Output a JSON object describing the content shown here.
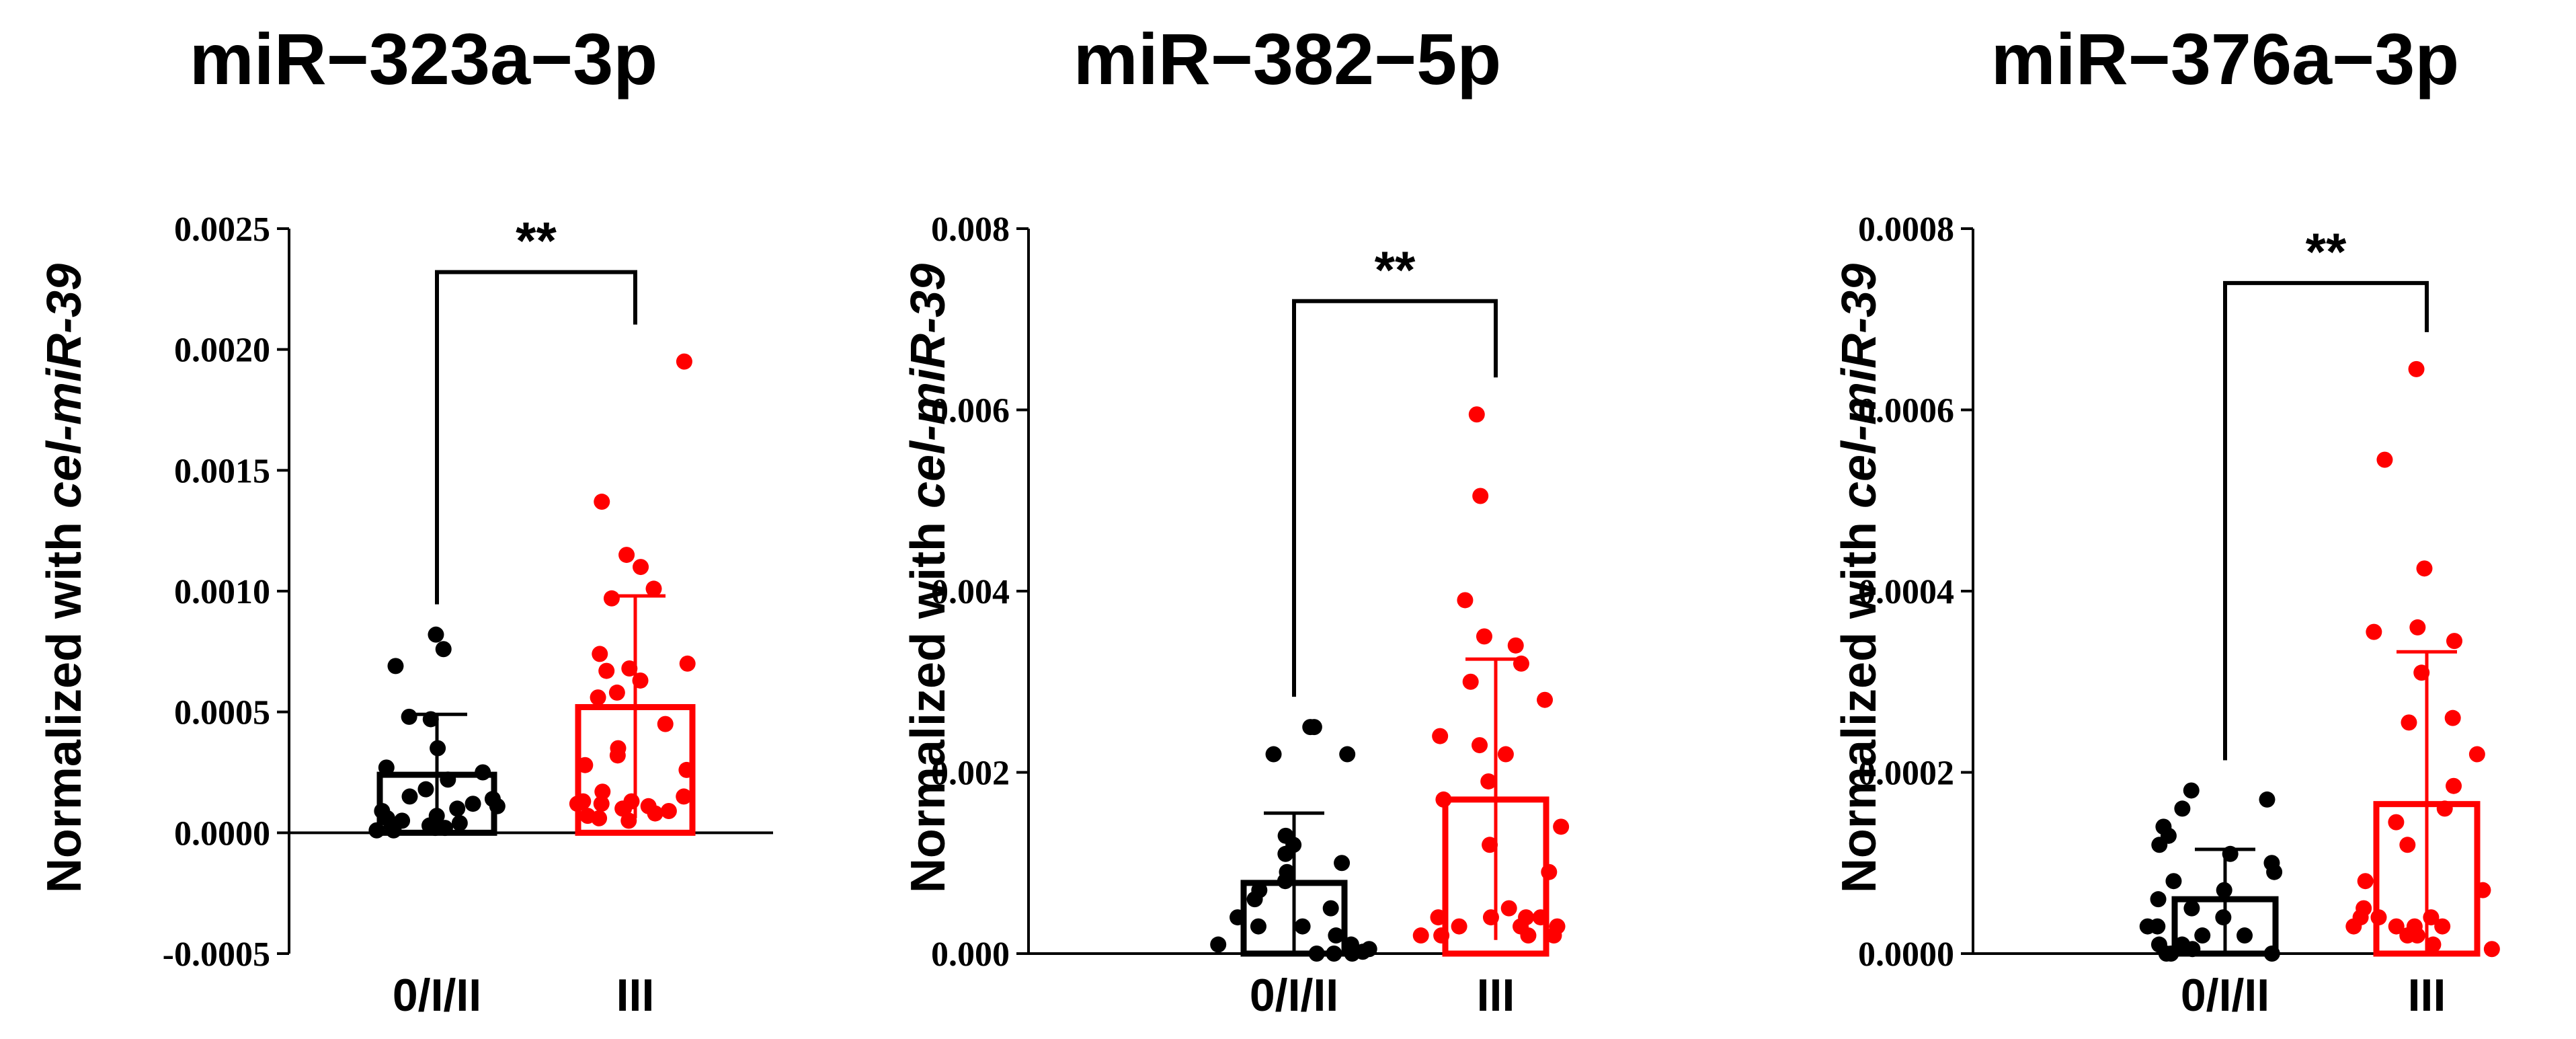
{
  "chart_data": [
    {
      "type": "bar",
      "title": "miR−323a−3p",
      "ylabel_prefix": "Normalized with ",
      "ylabel_italic": "cel-miR-39",
      "categories": [
        "0/I/II",
        "III"
      ],
      "ylim": [
        -0.0005,
        0.0025
      ],
      "yticks": [
        -0.0005,
        0.0,
        0.0005,
        0.001,
        0.0015,
        0.002,
        0.0025
      ],
      "ytick_labels": [
        "-0.0005",
        "0.0000",
        "0.0005",
        "0.0010",
        "0.0015",
        "0.0020",
        "0.0025"
      ],
      "zero_line": true,
      "significance": "**",
      "series": [
        {
          "category": "0/I/II",
          "color": "#000000",
          "mean": 0.00024,
          "sd_upper": 0.00049,
          "sd_lower": 0.0,
          "points": [
            0.00082,
            0.00076,
            0.00069,
            0.00048,
            0.00047,
            0.00035,
            0.00027,
            0.00025,
            0.00022,
            0.00018,
            0.00015,
            0.00012,
            0.0001,
            9e-05,
            7e-05,
            5e-05,
            4e-05,
            3e-05,
            2e-05,
            2e-05,
            1e-05,
            1e-05,
            0.00014,
            0.00011,
            6e-05,
            3e-05
          ]
        },
        {
          "category": "III",
          "color": "#ff0000",
          "mean": 0.00052,
          "sd_upper": 0.00098,
          "sd_lower": 6e-05,
          "points": [
            0.00195,
            0.00137,
            0.00115,
            0.0011,
            0.00101,
            0.00097,
            0.00074,
            0.0007,
            0.00068,
            0.00067,
            0.00063,
            0.00058,
            0.00056,
            0.00045,
            0.00035,
            0.00032,
            0.00028,
            0.00026,
            0.00017,
            0.00015,
            0.00013,
            0.00012,
            0.00011,
            0.0001,
            9e-05,
            8e-05,
            7e-05,
            6e-05,
            5e-05,
            0.00013,
            0.00012,
            0.0001
          ]
        }
      ]
    },
    {
      "type": "bar",
      "title": "miR−382−5p",
      "ylabel_prefix": "Normalized with ",
      "ylabel_italic": "cel-miR-39",
      "categories": [
        "0/I/II",
        "III"
      ],
      "ylim": [
        0.0,
        0.008
      ],
      "yticks": [
        0.0,
        0.002,
        0.004,
        0.006,
        0.008
      ],
      "ytick_labels": [
        "0.000",
        "0.002",
        "0.004",
        "0.006",
        "0.008"
      ],
      "zero_line": false,
      "significance": "**",
      "series": [
        {
          "category": "0/I/II",
          "color": "#000000",
          "mean": 0.00078,
          "sd_upper": 0.00155,
          "sd_lower": 0.0,
          "points": [
            0.0025,
            0.0025,
            0.0022,
            0.0022,
            0.0013,
            0.0012,
            0.0011,
            0.001,
            0.0009,
            0.0008,
            0.0007,
            0.0006,
            0.0005,
            0.0004,
            0.0003,
            0.0002,
            0.0001,
            5e-05,
            2e-05,
            0.0,
            0.0,
            0.0,
            0.0003,
            0.0001
          ]
        },
        {
          "category": "III",
          "color": "#ff0000",
          "mean": 0.0017,
          "sd_upper": 0.00325,
          "sd_lower": 0.00015,
          "points": [
            0.00595,
            0.00505,
            0.0039,
            0.0035,
            0.0034,
            0.0032,
            0.003,
            0.0028,
            0.0024,
            0.0023,
            0.0022,
            0.0019,
            0.0017,
            0.0014,
            0.0012,
            0.0009,
            0.0005,
            0.0004,
            0.0004,
            0.0004,
            0.0003,
            0.0003,
            0.0002,
            0.0002,
            0.0002,
            0.0004,
            0.0003,
            0.0002
          ]
        }
      ]
    },
    {
      "type": "bar",
      "title": "miR−376a−3p",
      "ylabel_prefix": "Normalized with ",
      "ylabel_italic": "cel-miR-39",
      "categories": [
        "0/I/II",
        "III"
      ],
      "ylim": [
        0.0,
        0.0008
      ],
      "yticks": [
        0.0,
        0.0002,
        0.0004,
        0.0006,
        0.0008
      ],
      "ytick_labels": [
        "0.0000",
        "0.0002",
        "0.0004",
        "0.0006",
        "0.0008"
      ],
      "zero_line": false,
      "significance": "**",
      "series": [
        {
          "category": "0/I/II",
          "color": "#000000",
          "mean": 6e-05,
          "sd_upper": 0.000115,
          "sd_lower": 0.0,
          "points": [
            0.00018,
            0.00017,
            0.00016,
            0.00014,
            0.00013,
            0.00012,
            0.00011,
            0.0001,
            9e-05,
            8e-05,
            7e-05,
            6e-05,
            5e-05,
            4e-05,
            3e-05,
            2e-05,
            1e-05,
            5e-06,
            0.0,
            0.0,
            0.0,
            3e-05,
            2e-05,
            1e-05
          ]
        },
        {
          "category": "III",
          "color": "#ff0000",
          "mean": 0.000165,
          "sd_upper": 0.000333,
          "sd_lower": 0.0,
          "points": [
            0.000645,
            0.000545,
            0.000425,
            0.00036,
            0.000355,
            0.000345,
            0.00031,
            0.00026,
            0.000255,
            0.00022,
            0.000185,
            0.00016,
            0.000145,
            0.00012,
            8e-05,
            7e-05,
            5e-05,
            4e-05,
            4e-05,
            3e-05,
            3e-05,
            3e-05,
            2e-05,
            2e-05,
            1e-05,
            5e-06,
            4e-05,
            3e-05
          ]
        }
      ]
    }
  ]
}
